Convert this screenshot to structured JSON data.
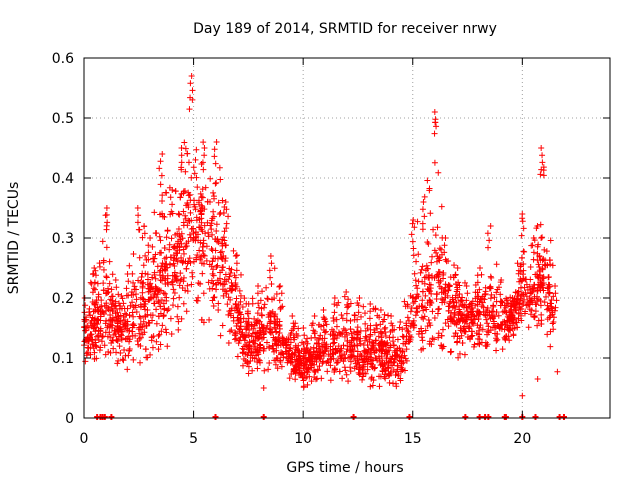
{
  "chart_data": {
    "type": "scatter",
    "title": "Day 189 of 2014, SRMTID for receiver nrwy",
    "xlabel": "GPS time / hours",
    "ylabel": "SRMTID / TECUs",
    "xlim": [
      0,
      24
    ],
    "ylim": [
      0,
      0.6
    ],
    "xticks": [
      0,
      5,
      10,
      15,
      20
    ],
    "yticks": [
      0,
      0.1,
      0.2,
      0.3,
      0.4,
      0.5,
      0.6
    ],
    "grid": true,
    "marker": "plus",
    "color": "#ff0000",
    "series": [
      {
        "name": "SRMTID",
        "description": "Dense scatter of per-satellite SRMTID values; envelope of the observed cloud over the day",
        "envelope": [
          {
            "x": 0.0,
            "low": 0.08,
            "mid": 0.14,
            "high": 0.2
          },
          {
            "x": 0.5,
            "low": 0.09,
            "mid": 0.15,
            "high": 0.25
          },
          {
            "x": 1.0,
            "low": 0.1,
            "mid": 0.17,
            "high": 0.35
          },
          {
            "x": 1.5,
            "low": 0.09,
            "mid": 0.16,
            "high": 0.23
          },
          {
            "x": 2.0,
            "low": 0.08,
            "mid": 0.15,
            "high": 0.24
          },
          {
            "x": 2.5,
            "low": 0.09,
            "mid": 0.18,
            "high": 0.35
          },
          {
            "x": 3.0,
            "low": 0.1,
            "mid": 0.2,
            "high": 0.3
          },
          {
            "x": 3.5,
            "low": 0.11,
            "mid": 0.22,
            "high": 0.44
          },
          {
            "x": 4.0,
            "low": 0.12,
            "mid": 0.25,
            "high": 0.38
          },
          {
            "x": 4.5,
            "low": 0.14,
            "mid": 0.28,
            "high": 0.45
          },
          {
            "x": 4.9,
            "low": 0.16,
            "mid": 0.33,
            "high": 0.57
          },
          {
            "x": 5.5,
            "low": 0.15,
            "mid": 0.3,
            "high": 0.45
          },
          {
            "x": 6.0,
            "low": 0.14,
            "mid": 0.27,
            "high": 0.46
          },
          {
            "x": 6.5,
            "low": 0.13,
            "mid": 0.23,
            "high": 0.36
          },
          {
            "x": 7.0,
            "low": 0.1,
            "mid": 0.17,
            "high": 0.27
          },
          {
            "x": 7.5,
            "low": 0.07,
            "mid": 0.12,
            "high": 0.19
          },
          {
            "x": 8.0,
            "low": 0.07,
            "mid": 0.14,
            "high": 0.22
          },
          {
            "x": 8.5,
            "low": 0.08,
            "mid": 0.15,
            "high": 0.27
          },
          {
            "x": 9.0,
            "low": 0.08,
            "mid": 0.13,
            "high": 0.22
          },
          {
            "x": 9.5,
            "low": 0.06,
            "mid": 0.1,
            "high": 0.17
          },
          {
            "x": 10.0,
            "low": 0.05,
            "mid": 0.09,
            "high": 0.15
          },
          {
            "x": 10.5,
            "low": 0.06,
            "mid": 0.1,
            "high": 0.17
          },
          {
            "x": 11.0,
            "low": 0.06,
            "mid": 0.11,
            "high": 0.18
          },
          {
            "x": 11.5,
            "low": 0.06,
            "mid": 0.12,
            "high": 0.2
          },
          {
            "x": 12.0,
            "low": 0.06,
            "mid": 0.12,
            "high": 0.21
          },
          {
            "x": 12.5,
            "low": 0.06,
            "mid": 0.11,
            "high": 0.2
          },
          {
            "x": 13.0,
            "low": 0.05,
            "mid": 0.11,
            "high": 0.19
          },
          {
            "x": 13.5,
            "low": 0.05,
            "mid": 0.1,
            "high": 0.18
          },
          {
            "x": 14.0,
            "low": 0.05,
            "mid": 0.1,
            "high": 0.17
          },
          {
            "x": 14.5,
            "low": 0.05,
            "mid": 0.1,
            "high": 0.16
          },
          {
            "x": 15.0,
            "low": 0.08,
            "mid": 0.17,
            "high": 0.33
          },
          {
            "x": 15.5,
            "low": 0.1,
            "mid": 0.2,
            "high": 0.36
          },
          {
            "x": 16.0,
            "low": 0.12,
            "mid": 0.22,
            "high": 0.51
          },
          {
            "x": 16.5,
            "low": 0.11,
            "mid": 0.2,
            "high": 0.3
          },
          {
            "x": 17.0,
            "low": 0.1,
            "mid": 0.17,
            "high": 0.25
          },
          {
            "x": 17.5,
            "low": 0.1,
            "mid": 0.16,
            "high": 0.22
          },
          {
            "x": 18.0,
            "low": 0.1,
            "mid": 0.17,
            "high": 0.25
          },
          {
            "x": 18.5,
            "low": 0.1,
            "mid": 0.19,
            "high": 0.32
          },
          {
            "x": 19.0,
            "low": 0.11,
            "mid": 0.16,
            "high": 0.23
          },
          {
            "x": 19.5,
            "low": 0.12,
            "mid": 0.16,
            "high": 0.2
          },
          {
            "x": 20.0,
            "low": 0.15,
            "mid": 0.22,
            "high": 0.34
          },
          {
            "x": 20.5,
            "low": 0.14,
            "mid": 0.2,
            "high": 0.3
          },
          {
            "x": 20.9,
            "low": 0.15,
            "mid": 0.24,
            "high": 0.45
          },
          {
            "x": 21.5,
            "low": 0.1,
            "mid": 0.16,
            "high": 0.22
          }
        ],
        "outliers": [
          {
            "x": 20.0,
            "y": 0.037
          },
          {
            "x": 20.7,
            "y": 0.065
          },
          {
            "x": 21.6,
            "y": 0.077
          },
          {
            "x": 8.2,
            "y": 0.05
          }
        ]
      },
      {
        "name": "zero values",
        "description": "Points at SRMTID = 0 along the x axis",
        "points": [
          0.6,
          0.75,
          0.85,
          0.95,
          1.25,
          6.0,
          8.2,
          12.3,
          14.85,
          17.4,
          18.05,
          18.3,
          18.45,
          19.2,
          19.25,
          20.0,
          20.6,
          21.7,
          21.9
        ]
      }
    ]
  }
}
